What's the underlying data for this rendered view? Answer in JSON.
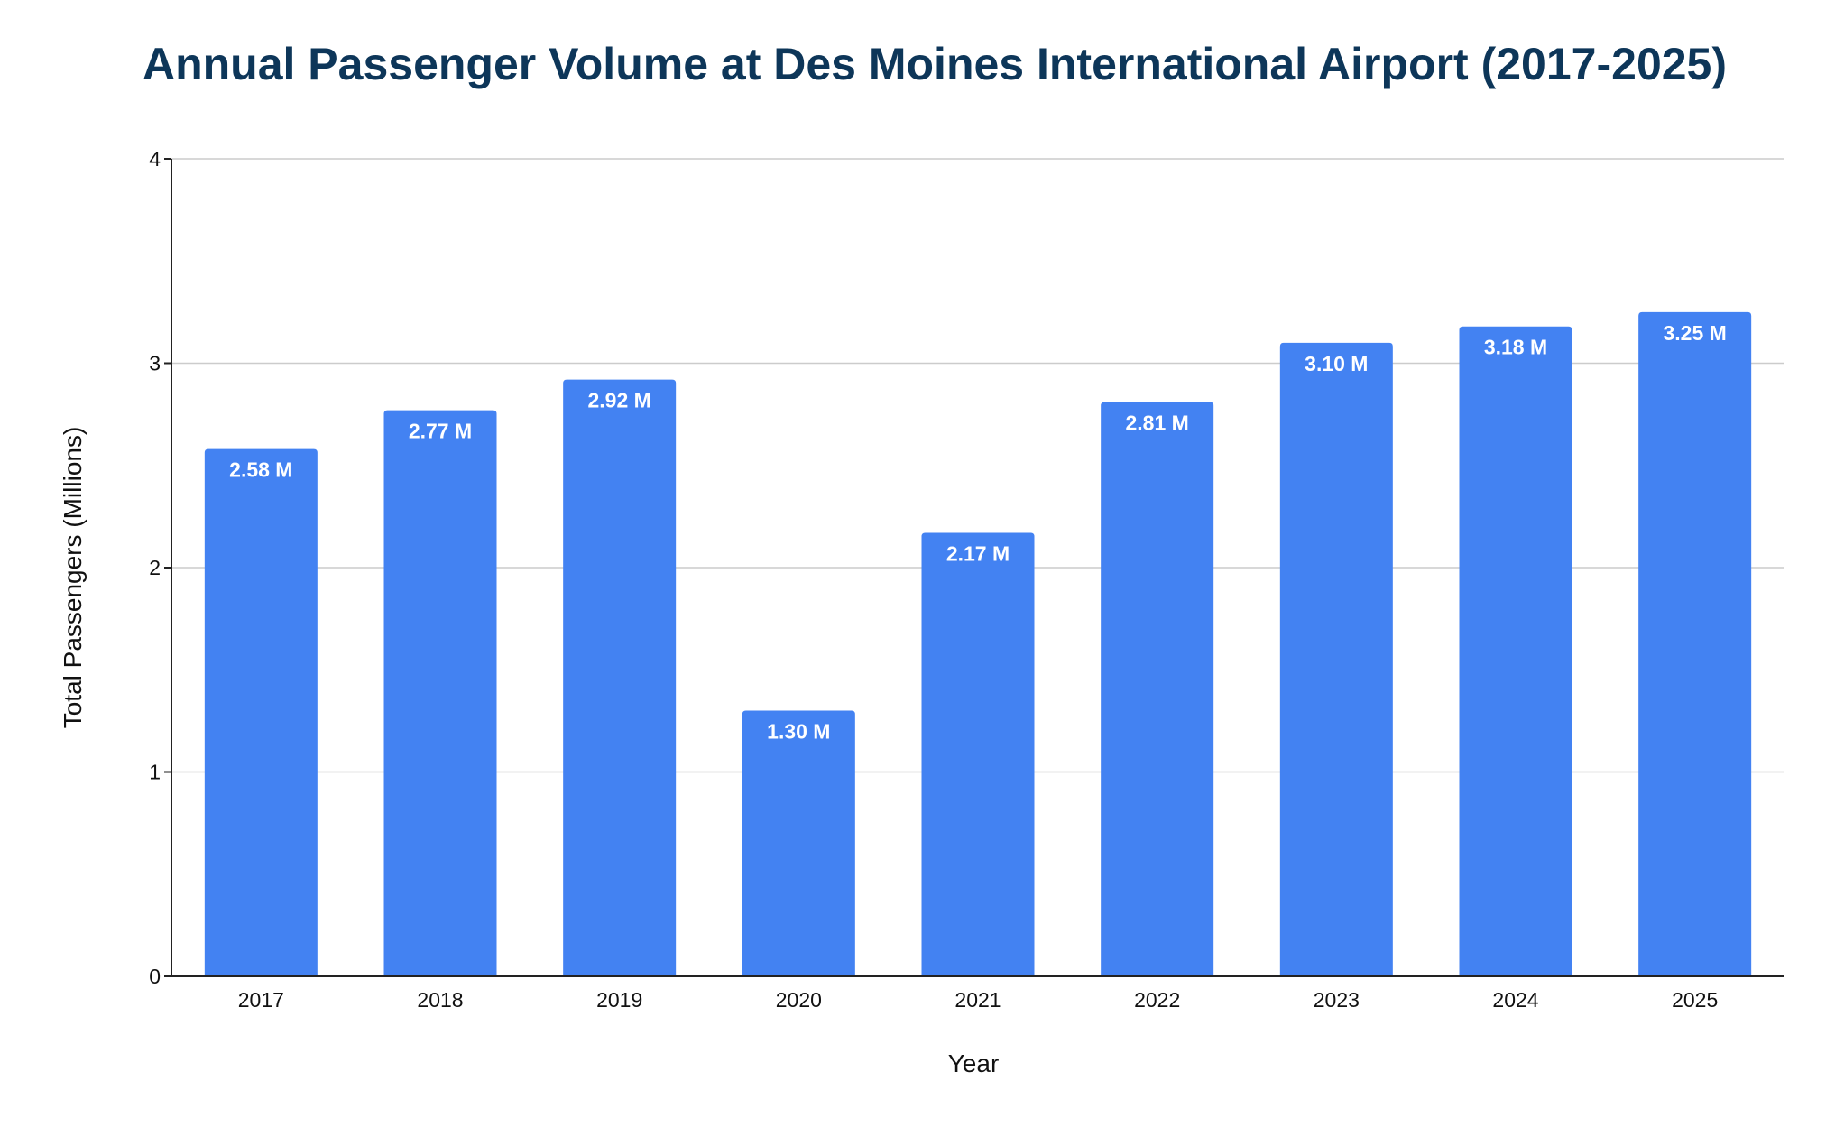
{
  "chart_data": {
    "type": "bar",
    "title": "Annual Passenger Volume at Des Moines International Airport (2017-2025)",
    "xlabel": "Year",
    "ylabel": "Total Passengers (Millions)",
    "categories": [
      "2017",
      "2018",
      "2019",
      "2020",
      "2021",
      "2022",
      "2023",
      "2024",
      "2025"
    ],
    "values": [
      2.58,
      2.77,
      2.92,
      1.3,
      2.17,
      2.81,
      3.1,
      3.18,
      3.25
    ],
    "data_labels": [
      "2.58 M",
      "2.77 M",
      "2.92 M",
      "1.30 M",
      "2.17 M",
      "2.81 M",
      "3.10 M",
      "3.18 M",
      "3.25 M"
    ],
    "ylim": [
      0,
      4
    ],
    "yticks": [
      0,
      1,
      2,
      3,
      4
    ],
    "ytick_labels": [
      "0",
      "1",
      "2",
      "3",
      "4"
    ],
    "grid": true,
    "legend": "none"
  },
  "colors": {
    "bar": "#4382f2",
    "title": "#0d3659",
    "grid": "#cccccc",
    "axis": "#222222"
  }
}
